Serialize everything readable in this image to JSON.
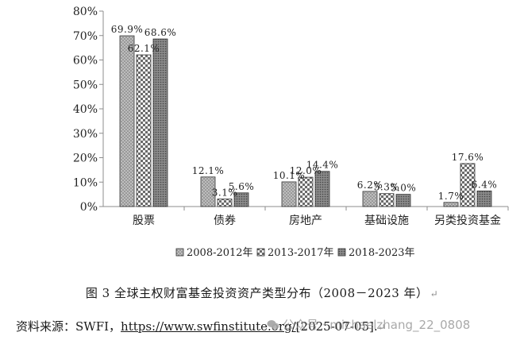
{
  "chart_data": {
    "type": "bar",
    "categories": [
      "股票",
      "债券",
      "房地产",
      "基础设施",
      "另类投资基金"
    ],
    "series": [
      {
        "name": "2008-2012年",
        "values": [
          69.9,
          12.1,
          10.1,
          6.2,
          1.7
        ],
        "labels": [
          "69.9%",
          "12.1%",
          "10.1%",
          "6.2%",
          "1.7%"
        ],
        "pattern": "dots"
      },
      {
        "name": "2013-2017年",
        "values": [
          62.1,
          3.1,
          12.0,
          5.3,
          17.6
        ],
        "labels": [
          "62.1%",
          "3.1%",
          "12.0%",
          "5.3%",
          "17.6%"
        ],
        "pattern": "checker"
      },
      {
        "name": "2018-2023年",
        "values": [
          68.6,
          5.6,
          14.4,
          5.0,
          6.4
        ],
        "labels": [
          "68.6%",
          "5.6%",
          "14.4%",
          "5.0%",
          "6.4%"
        ],
        "pattern": "dense"
      }
    ],
    "ylim": [
      0,
      80
    ],
    "yticks": [
      0,
      10,
      20,
      30,
      40,
      50,
      60,
      70,
      80
    ],
    "ytick_labels": [
      "0%",
      "10%",
      "20%",
      "30%",
      "40%",
      "50%",
      "60%",
      "70%",
      "80%"
    ],
    "grid": false,
    "legend": "bottom"
  },
  "caption": {
    "text": "图 3 全球主权财富基金投资资产类型分布（2008－2023 年）",
    "mark": "↵"
  },
  "source": {
    "prefix": "资料来源：SWFI，",
    "link": "https://www.swfinstitute.org/",
    "suffix": "[2025-07-05].",
    "mark": "↵"
  },
  "watermark": {
    "text": "公众号 · michaelzhang_22_0808"
  }
}
